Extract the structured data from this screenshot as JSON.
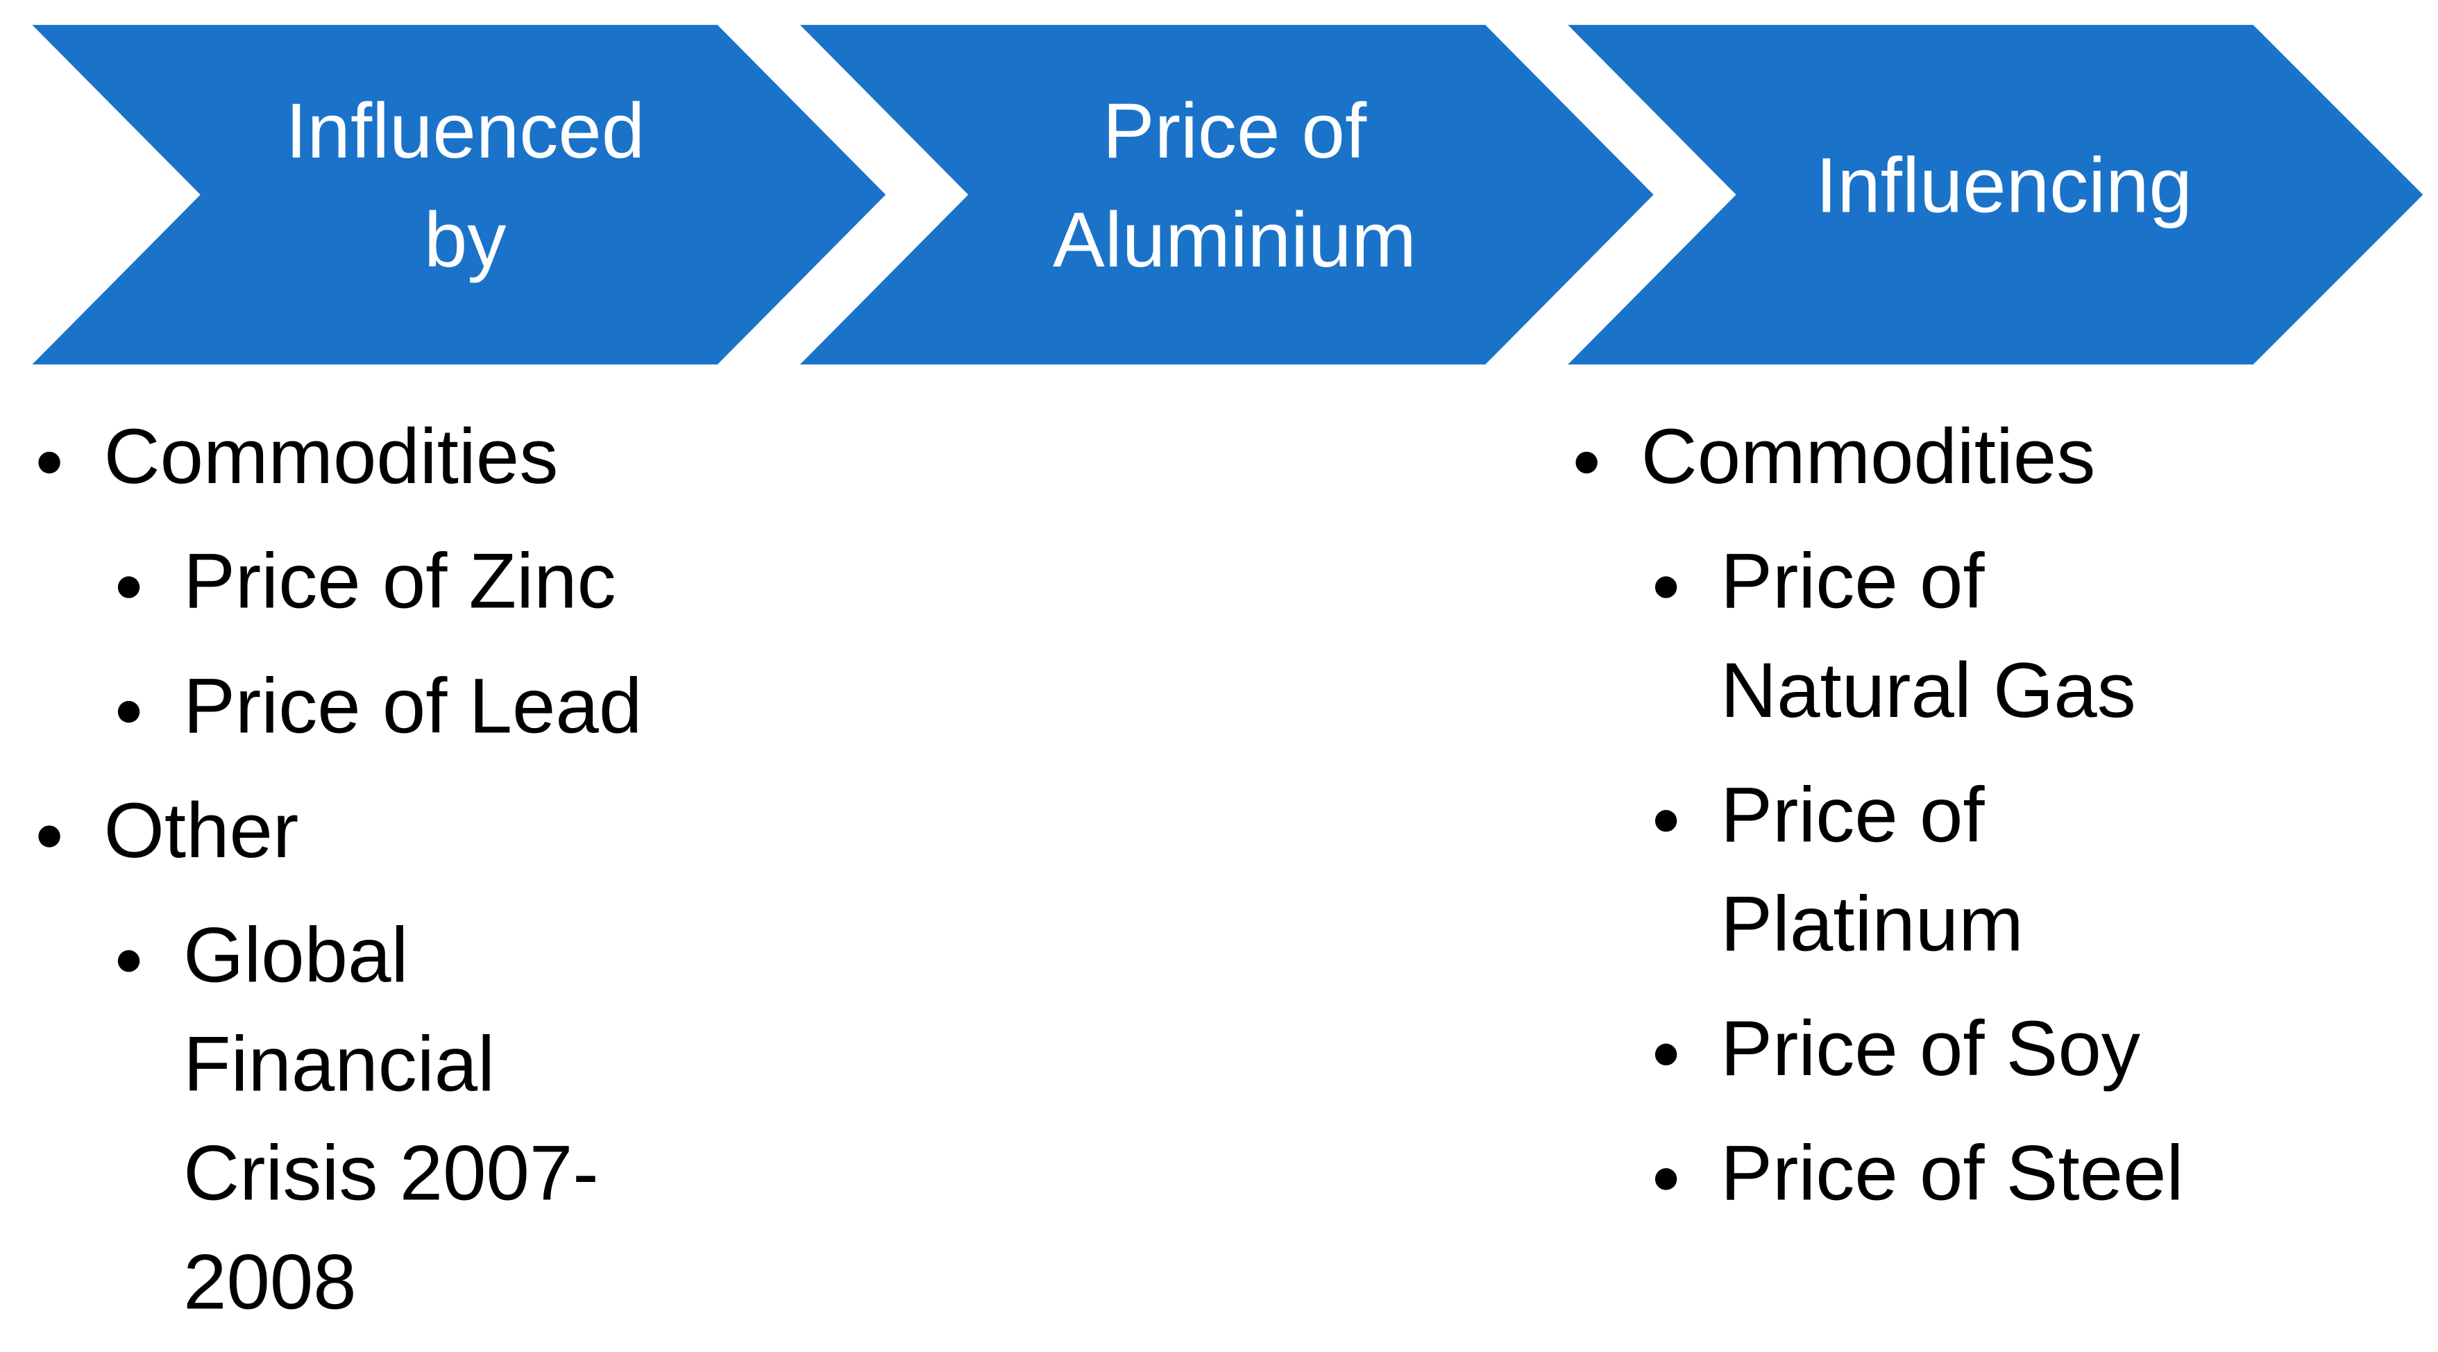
{
  "steps": [
    {
      "label_lines": [
        "Influenced",
        "by"
      ]
    },
    {
      "label_lines": [
        "Price of",
        "Aluminium"
      ]
    },
    {
      "label_lines": [
        "Influencing"
      ]
    }
  ],
  "lists": [
    {
      "items": [
        {
          "text": "Commodities",
          "children": [
            {
              "lines": [
                "Price of Zinc"
              ]
            },
            {
              "lines": [
                "Price of Lead"
              ]
            }
          ]
        },
        {
          "text": "Other",
          "children": [
            {
              "lines": [
                "Global",
                "Financial",
                "Crisis 2007-",
                "2008"
              ]
            }
          ]
        }
      ]
    },
    {
      "items": [
        {
          "text": "Commodities",
          "children": [
            {
              "lines": [
                "Price of",
                "Natural Gas"
              ]
            },
            {
              "lines": [
                "Price of",
                "Platinum"
              ]
            },
            {
              "lines": [
                "Price of Soy"
              ]
            },
            {
              "lines": [
                "Price of Steel"
              ]
            }
          ]
        }
      ]
    }
  ]
}
